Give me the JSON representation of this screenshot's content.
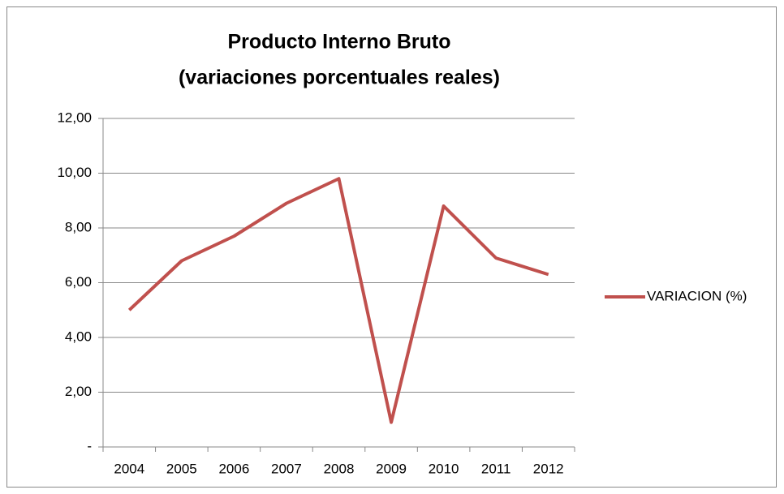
{
  "chart_data": {
    "type": "line",
    "title": [
      "Producto Interno Bruto",
      "(variaciones porcentuales reales)"
    ],
    "categories": [
      "2004",
      "2005",
      "2006",
      "2007",
      "2008",
      "2009",
      "2010",
      "2011",
      "2012"
    ],
    "series": [
      {
        "name": "VARIACION (%)",
        "color": "#c0504d",
        "values": [
          5.0,
          6.8,
          7.7,
          8.9,
          9.8,
          0.9,
          8.8,
          6.9,
          6.3
        ]
      }
    ],
    "ylim": [
      0,
      12
    ],
    "yticks": [
      {
        "value": 0,
        "label": "-"
      },
      {
        "value": 2,
        "label": "2,00"
      },
      {
        "value": 4,
        "label": "4,00"
      },
      {
        "value": 6,
        "label": "6,00"
      },
      {
        "value": 8,
        "label": "8,00"
      },
      {
        "value": 10,
        "label": "10,00"
      },
      {
        "value": 12,
        "label": "12,00"
      }
    ],
    "grid": true,
    "legend": "right"
  }
}
